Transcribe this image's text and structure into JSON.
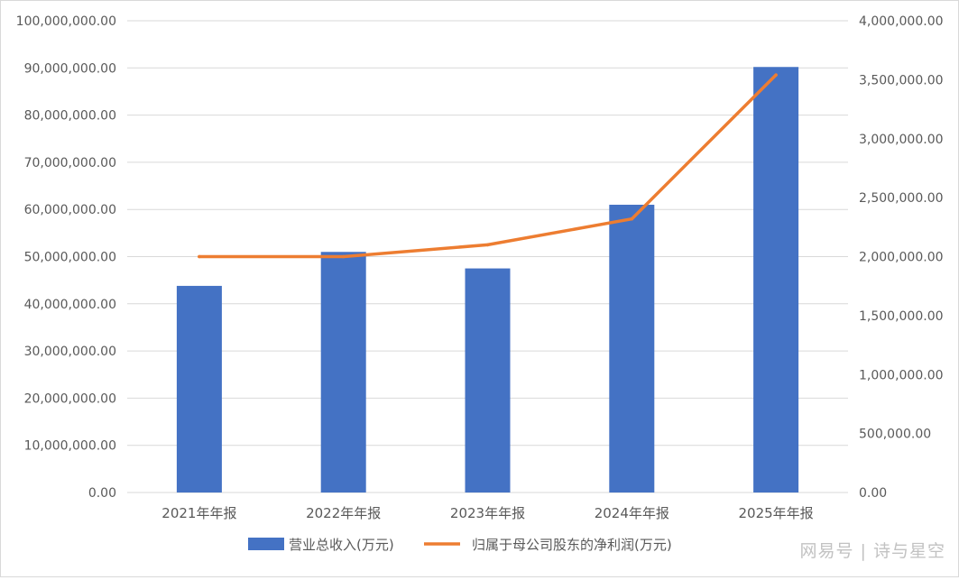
{
  "chart_data": {
    "type": "bar",
    "categories": [
      "2021年年报",
      "2022年年报",
      "2023年年报",
      "2024年年报",
      "2025年年报"
    ],
    "series": [
      {
        "name": "营业总收入(万元)",
        "type": "bar",
        "axis": "left",
        "color": "#4472C4",
        "values": [
          43800000,
          51000000,
          47500000,
          61000000,
          90200000
        ]
      },
      {
        "name": "归属于母公司股东的净利润(万元)",
        "type": "line",
        "axis": "right",
        "color": "#ED7D31",
        "values": [
          2000000,
          2000000,
          2100000,
          2320000,
          3540000
        ]
      }
    ],
    "y_left": {
      "min": 0,
      "max": 100000000,
      "step": 10000000,
      "ticks": [
        "0.00",
        "10,000,000.00",
        "20,000,000.00",
        "30,000,000.00",
        "40,000,000.00",
        "50,000,000.00",
        "60,000,000.00",
        "70,000,000.00",
        "80,000,000.00",
        "90,000,000.00",
        "100,000,000.00"
      ]
    },
    "y_right": {
      "min": 0,
      "max": 4000000,
      "step": 500000,
      "ticks": [
        "0.00",
        "500,000.00",
        "1,000,000.00",
        "1,500,000.00",
        "2,000,000.00",
        "2,500,000.00",
        "3,000,000.00",
        "3,500,000.00",
        "4,000,000.00"
      ]
    },
    "grid": true,
    "legend_position": "bottom",
    "gridline_color": "#d9d9d9",
    "text_color": "#595959"
  },
  "watermark": "网易号 | 诗与星空"
}
